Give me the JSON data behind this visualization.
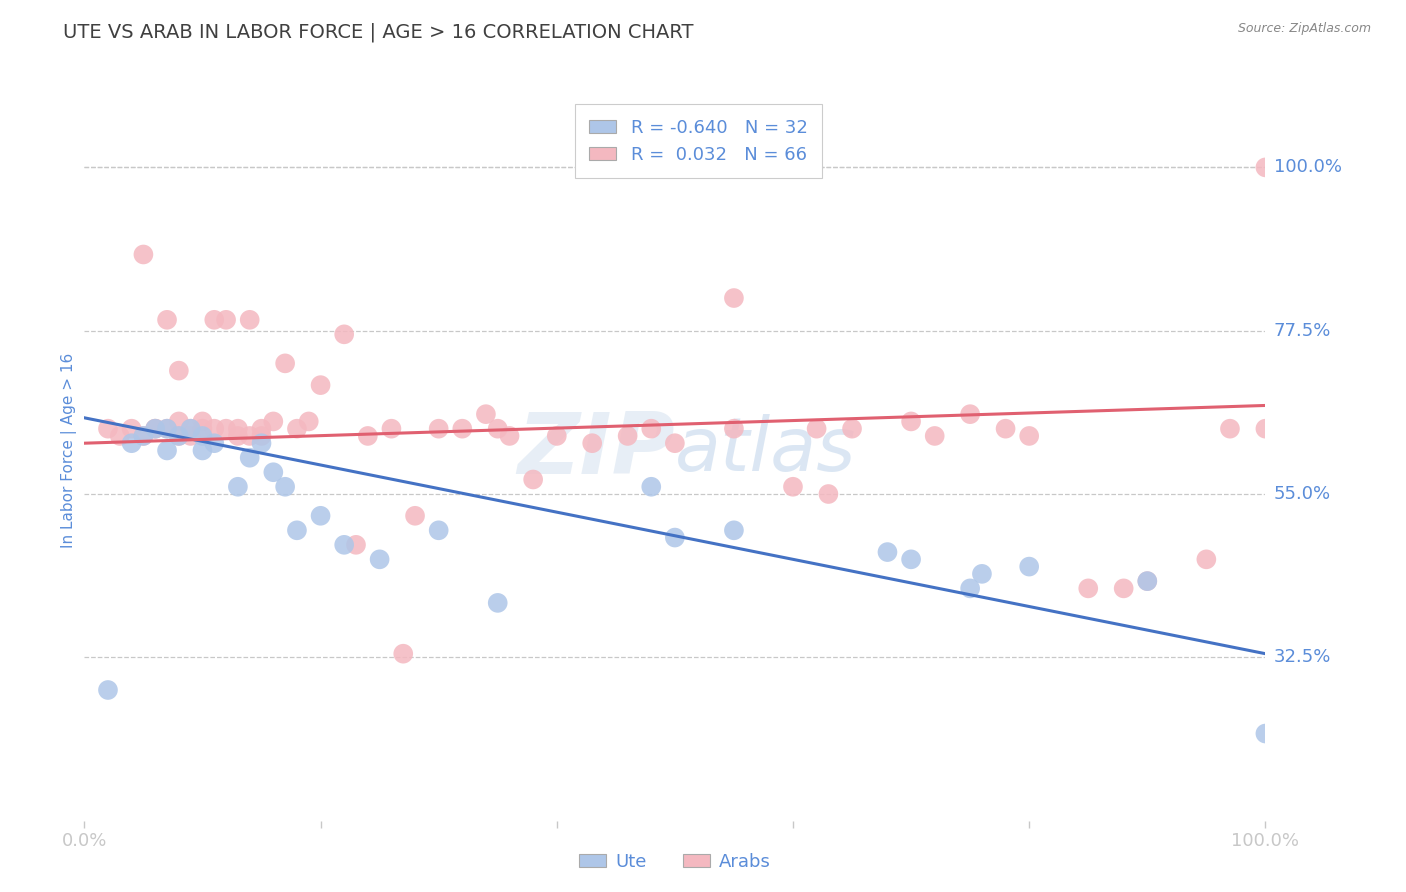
{
  "title": "UTE VS ARAB IN LABOR FORCE | AGE > 16 CORRELATION CHART",
  "source_text": "Source: ZipAtlas.com",
  "ylabel": "In Labor Force | Age > 16",
  "xlim": [
    0.0,
    1.0
  ],
  "ylim": [
    0.1,
    1.12
  ],
  "yticks": [
    0.325,
    0.55,
    0.775,
    1.0
  ],
  "ytick_labels": [
    "32.5%",
    "55.0%",
    "77.5%",
    "100.0%"
  ],
  "xticks": [
    0.0,
    0.2,
    0.4,
    0.6,
    0.8,
    1.0
  ],
  "xtick_labels": [
    "0.0%",
    "",
    "",
    "",
    "",
    "100.0%"
  ],
  "blue_R": -0.64,
  "blue_N": 32,
  "pink_R": 0.032,
  "pink_N": 66,
  "blue_color": "#aec6e8",
  "pink_color": "#f4b8c0",
  "blue_line_color": "#4472c4",
  "pink_line_color": "#e06070",
  "background_color": "#ffffff",
  "grid_color": "#c8c8c8",
  "title_color": "#404040",
  "label_color": "#5b8dd9",
  "watermark_color": "#d0ddf0",
  "blue_line_intercept": 0.655,
  "blue_line_slope": -0.325,
  "pink_line_intercept": 0.62,
  "pink_line_slope": 0.052,
  "blue_x": [
    0.02,
    0.04,
    0.05,
    0.06,
    0.07,
    0.07,
    0.08,
    0.09,
    0.1,
    0.1,
    0.11,
    0.13,
    0.14,
    0.15,
    0.16,
    0.17,
    0.18,
    0.2,
    0.22,
    0.25,
    0.3,
    0.35,
    0.48,
    0.5,
    0.55,
    0.68,
    0.7,
    0.75,
    0.76,
    0.8,
    0.9,
    1.0
  ],
  "blue_y": [
    0.28,
    0.62,
    0.63,
    0.64,
    0.64,
    0.61,
    0.63,
    0.64,
    0.63,
    0.61,
    0.62,
    0.56,
    0.6,
    0.62,
    0.58,
    0.56,
    0.5,
    0.52,
    0.48,
    0.46,
    0.5,
    0.4,
    0.56,
    0.49,
    0.5,
    0.47,
    0.46,
    0.42,
    0.44,
    0.45,
    0.43,
    0.22
  ],
  "pink_x": [
    0.02,
    0.03,
    0.04,
    0.05,
    0.05,
    0.06,
    0.06,
    0.07,
    0.07,
    0.08,
    0.08,
    0.08,
    0.09,
    0.09,
    0.1,
    0.1,
    0.11,
    0.11,
    0.12,
    0.12,
    0.13,
    0.13,
    0.14,
    0.14,
    0.15,
    0.15,
    0.16,
    0.17,
    0.18,
    0.19,
    0.2,
    0.22,
    0.24,
    0.26,
    0.28,
    0.3,
    0.32,
    0.34,
    0.36,
    0.38,
    0.4,
    0.46,
    0.48,
    0.5,
    0.55,
    0.6,
    0.62,
    0.65,
    0.7,
    0.72,
    0.75,
    0.78,
    0.8,
    0.85,
    0.88,
    0.9,
    0.95,
    0.97,
    1.0,
    1.0,
    0.35,
    0.55,
    0.63,
    0.43,
    0.23,
    0.27
  ],
  "pink_y": [
    0.64,
    0.63,
    0.64,
    0.88,
    0.63,
    0.64,
    0.64,
    0.79,
    0.64,
    0.65,
    0.72,
    0.63,
    0.64,
    0.63,
    0.65,
    0.64,
    0.79,
    0.64,
    0.79,
    0.64,
    0.63,
    0.64,
    0.79,
    0.63,
    0.63,
    0.64,
    0.65,
    0.73,
    0.64,
    0.65,
    0.7,
    0.77,
    0.63,
    0.64,
    0.52,
    0.64,
    0.64,
    0.66,
    0.63,
    0.57,
    0.63,
    0.63,
    0.64,
    0.62,
    0.64,
    0.56,
    0.64,
    0.64,
    0.65,
    0.63,
    0.66,
    0.64,
    0.63,
    0.42,
    0.42,
    0.43,
    0.46,
    0.64,
    1.0,
    0.64,
    0.64,
    0.82,
    0.55,
    0.62,
    0.48,
    0.33
  ]
}
